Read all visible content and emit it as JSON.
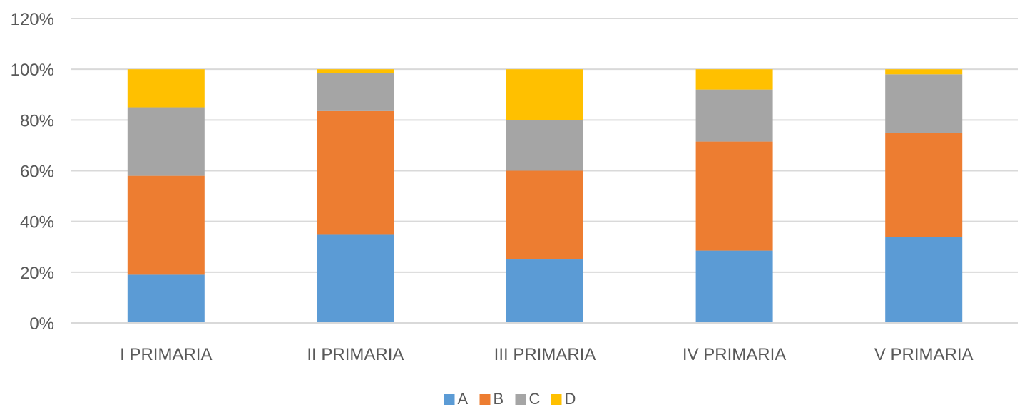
{
  "chart_data": {
    "type": "bar",
    "stacked": true,
    "categories": [
      "I PRIMARIA",
      "II PRIMARIA",
      "III PRIMARIA",
      "IV PRIMARIA",
      "V PRIMARIA"
    ],
    "series": [
      {
        "name": "A",
        "color": "#5B9BD5",
        "values": [
          19,
          35,
          25,
          28.5,
          34
        ]
      },
      {
        "name": "B",
        "color": "#ED7D31",
        "values": [
          39,
          48.5,
          35,
          43,
          41
        ]
      },
      {
        "name": "C",
        "color": "#A5A5A5",
        "values": [
          27,
          15,
          20,
          20.5,
          23
        ]
      },
      {
        "name": "D",
        "color": "#FFC000",
        "values": [
          15,
          1.5,
          20,
          8,
          2
        ]
      }
    ],
    "y_ticks": [
      "0%",
      "20%",
      "40%",
      "60%",
      "80%",
      "100%",
      "120%"
    ],
    "ylim": [
      0,
      120
    ],
    "grid": true,
    "legend": "bottom-center",
    "title": "",
    "xlabel": "",
    "ylabel": ""
  }
}
